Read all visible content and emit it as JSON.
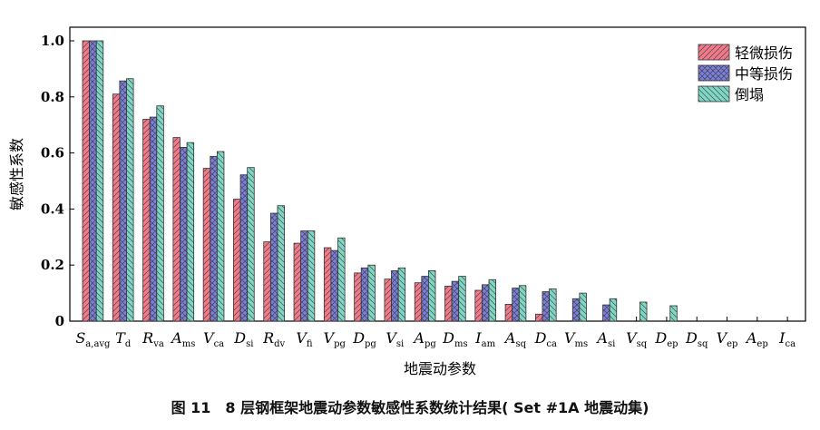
{
  "figure": {
    "caption": "图 11　8 层钢框架地震动参数敏感性系数统计结果( Set #1A 地震动集)"
  },
  "colors": {
    "series": [
      "#ef7b8a",
      "#7c7fd8",
      "#7fd6c4"
    ],
    "edge": "#333333",
    "hatch": "#333333"
  },
  "chart_data": {
    "type": "bar",
    "ylabel": "敏感性系数",
    "xlabel": "地震动参数",
    "ylim": [
      0,
      1.0
    ],
    "yticks": [
      "0",
      "0.2",
      "0.4",
      "0.6",
      "0.8",
      "1.0"
    ],
    "legend_position": "top-right",
    "categories": [
      {
        "main": "S",
        "sub": "a,avg"
      },
      {
        "main": "T",
        "sub": "d"
      },
      {
        "main": "R",
        "sub": "va"
      },
      {
        "main": "A",
        "sub": "ms"
      },
      {
        "main": "V",
        "sub": "ca"
      },
      {
        "main": "D",
        "sub": "si"
      },
      {
        "main": "R",
        "sub": "dv"
      },
      {
        "main": "V",
        "sub": "fi"
      },
      {
        "main": "V",
        "sub": "pg"
      },
      {
        "main": "D",
        "sub": "pg"
      },
      {
        "main": "V",
        "sub": "si"
      },
      {
        "main": "A",
        "sub": "pg"
      },
      {
        "main": "D",
        "sub": "ms"
      },
      {
        "main": "I",
        "sub": "am"
      },
      {
        "main": "A",
        "sub": "sq"
      },
      {
        "main": "D",
        "sub": "ca"
      },
      {
        "main": "V",
        "sub": "ms"
      },
      {
        "main": "A",
        "sub": "si"
      },
      {
        "main": "V",
        "sub": "sq"
      },
      {
        "main": "D",
        "sub": "ep"
      },
      {
        "main": "D",
        "sub": "sq"
      },
      {
        "main": "V",
        "sub": "ep"
      },
      {
        "main": "A",
        "sub": "ep"
      },
      {
        "main": "I",
        "sub": "ca"
      }
    ],
    "series": [
      {
        "name": "轻微损伤",
        "values": [
          1.0,
          0.81,
          0.72,
          0.655,
          0.545,
          0.435,
          0.283,
          0.278,
          0.262,
          0.172,
          0.15,
          0.137,
          0.125,
          0.11,
          0.06,
          0.025,
          0,
          0,
          0,
          0,
          0,
          0,
          0,
          0
        ]
      },
      {
        "name": "中等损伤",
        "values": [
          1.0,
          0.857,
          0.728,
          0.62,
          0.588,
          0.522,
          0.385,
          0.322,
          0.252,
          0.19,
          0.18,
          0.16,
          0.142,
          0.13,
          0.118,
          0.105,
          0.08,
          0.058,
          0,
          0,
          0,
          0,
          0,
          0
        ]
      },
      {
        "name": "倒塌",
        "values": [
          1.0,
          0.865,
          0.768,
          0.637,
          0.605,
          0.548,
          0.412,
          0.322,
          0.297,
          0.2,
          0.19,
          0.18,
          0.16,
          0.148,
          0.127,
          0.115,
          0.1,
          0.08,
          0.068,
          0.055,
          0,
          0,
          0,
          0
        ]
      }
    ]
  }
}
